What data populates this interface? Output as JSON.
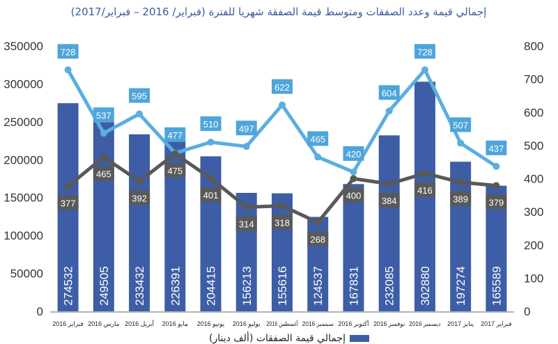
{
  "chart_data": {
    "type": "bar+line",
    "title": "إجمالي قيمة وعدد الصفقات ومتوسط قيمة الصفقة شهريا للفترة (فبراير/ 2016 – فبراير/2017)",
    "categories": [
      "فبراير 2016",
      "مارس 2016",
      "أبريل 2016",
      "مايو 2016",
      "يونيو 2016",
      "يوليو 2016",
      "أغسطس 2016",
      "سبتمبر 2016",
      "أكتوبر 2016",
      "نوفمبر 2016",
      "ديسمبر 2016",
      "يناير 2017",
      "فبراير 2017"
    ],
    "series": [
      {
        "name": "إجمالي قيمة الصفقات (ألف دينار)",
        "type": "bar",
        "axis": "left",
        "color": "#3d5ea6",
        "values": [
          274532,
          249505,
          233432,
          226391,
          204415,
          156213,
          155616,
          124537,
          167831,
          232085,
          302880,
          197274,
          165589
        ]
      },
      {
        "name": "blue-line",
        "type": "line",
        "axis": "right",
        "color": "#5aaee0",
        "values": [
          728,
          537,
          595,
          477,
          510,
          497,
          622,
          465,
          420,
          604,
          728,
          507,
          437
        ]
      },
      {
        "name": "gray-line",
        "type": "line",
        "axis": "right",
        "color": "#595959",
        "values": [
          377,
          465,
          392,
          475,
          401,
          314,
          318,
          268,
          400,
          384,
          416,
          389,
          379
        ]
      }
    ],
    "left_axis": {
      "ylim": [
        0,
        350000
      ],
      "ticks": [
        "0",
        "50000",
        "100000",
        "150000",
        "200000",
        "250000",
        "300000",
        "350000"
      ]
    },
    "right_axis": {
      "ylim": [
        0,
        800
      ],
      "ticks": [
        "0",
        "100",
        "200",
        "300",
        "400",
        "500",
        "600",
        "700",
        "800"
      ]
    },
    "legend": {
      "label": "إجمالي قيمة الصفقات (ألف دينار)",
      "placement": "bottom"
    }
  }
}
